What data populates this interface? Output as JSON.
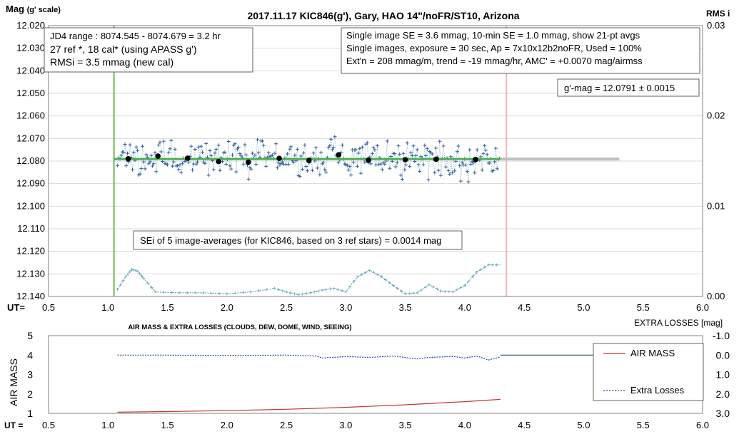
{
  "chart_data": [
    {
      "type": "scatter",
      "title": "2017.11.17  KIC846(g'),  Gary, HAO  14\"/noFR/ST10,  Arizona",
      "ylabel": "Mag",
      "ylabel_unit": "(g' scale)",
      "y2label": "RMS i",
      "xlabel": "UT=",
      "xlim": [
        0.5,
        6.0
      ],
      "ylim": [
        12.02,
        12.14
      ],
      "y_inverted": true,
      "y2lim": [
        0.0,
        0.03
      ],
      "xticks": [
        "0.5",
        "1.0",
        "1.5",
        "2.0",
        "2.5",
        "3.0",
        "3.5",
        "4.0",
        "4.5",
        "5.0",
        "5.5",
        "6.0"
      ],
      "yticks": [
        "12.020",
        "12.030",
        "12.040",
        "12.050",
        "12.060",
        "12.070",
        "12.080",
        "12.090",
        "12.100",
        "12.110",
        "12.120",
        "12.130",
        "12.140"
      ],
      "y2ticks": [
        "0.03",
        "0.02",
        "0.01",
        "0.00"
      ],
      "grid": "horizontal",
      "vlines": [
        {
          "x": 1.05,
          "color": "#70b84a"
        },
        {
          "x": 4.35,
          "color": "#f0b4b4"
        }
      ],
      "info_box_left": [
        "JD4 range : 8074.545 - 8074.679 = 3.2  hr",
        "27 ref *, 18 cal* (using APASS g')",
        "RMSi = 3.5 mmag (new cal)"
      ],
      "info_box_right": [
        "Single image SE = 3.6 mmag, 10-min SE = 1.0 mmag, show  21-pt avgs",
        "Single images, exposure = 30 sec, Ap = 7x10x12b2noFR,  Used = 100%",
        "Ext'n = 208 mmag/m, trend =  -19 mmag/hr, AMC' = +0.0070 mag/airmss"
      ],
      "gmag_box": "g'-mag = 12.0791 ± 0.0015",
      "sei_box": "SEi of 5 image-averages (for KIC846, based on 3 ref stars) = 0.0014  mag",
      "series": [
        {
          "role": "averages",
          "color": "#000000",
          "x": [
            1.17,
            1.42,
            1.67,
            1.93,
            2.18,
            2.44,
            2.69,
            2.94,
            3.19,
            3.5,
            3.76,
            4.09
          ],
          "y": [
            12.079,
            12.0778,
            12.0787,
            12.0802,
            12.0805,
            12.0788,
            12.0797,
            12.0772,
            12.0796,
            12.0794,
            12.0792,
            12.0793
          ]
        },
        {
          "role": "model_line",
          "color": "#4caf50",
          "x": [
            1.05,
            4.3
          ],
          "y": [
            12.0791,
            12.0791
          ]
        },
        {
          "role": "extrapolated_model",
          "color": "#c0c0c0",
          "x": [
            4.3,
            5.3
          ],
          "y": [
            12.0791,
            12.0791
          ]
        },
        {
          "role": "rms_curve",
          "axis": "y2",
          "color": "#5fa8b8",
          "x": [
            1.08,
            1.15,
            1.2,
            1.25,
            1.3,
            1.4,
            1.6,
            1.8,
            2.0,
            2.2,
            2.4,
            2.5,
            2.6,
            2.7,
            2.8,
            2.9,
            3.0,
            3.1,
            3.2,
            3.3,
            3.4,
            3.5,
            3.6,
            3.7,
            3.8,
            3.9,
            4.0,
            4.1,
            4.2,
            4.3
          ],
          "y": [
            0.0008,
            0.0022,
            0.003,
            0.0028,
            0.002,
            0.0005,
            0.0004,
            0.0004,
            0.0003,
            0.0005,
            0.0009,
            0.0005,
            0.0002,
            0.0004,
            0.0007,
            0.0009,
            0.0005,
            0.0022,
            0.0029,
            0.0022,
            0.0012,
            0.0003,
            0.0004,
            0.0013,
            0.0006,
            0.0005,
            0.0012,
            0.0027,
            0.0035,
            0.0035
          ]
        }
      ]
    },
    {
      "type": "line",
      "title": "AIR MASS & EXTRA LOSSES (CLOUDS, DEW, DOME, WIND, SEEING)",
      "ylabel": "AIR MASS",
      "y2label": "EXTRA LOSSES [mag]",
      "xlabel": "UT =",
      "xlim": [
        0.5,
        6.0
      ],
      "ylim": [
        1,
        5
      ],
      "y2lim": [
        -1.0,
        3.0
      ],
      "y2_inverted": true,
      "xticks": [
        "0.5",
        "1.0",
        "1.5",
        "2.0",
        "2.5",
        "3.0",
        "3.5",
        "4.0",
        "4.5",
        "5.0",
        "5.5",
        "6.0"
      ],
      "yticks": [
        "1",
        "2",
        "3",
        "4",
        "5"
      ],
      "y2ticks": [
        "-1.0",
        "0.0",
        "1.0",
        "2.0",
        "3.0"
      ],
      "legend": "right",
      "series": [
        {
          "name": "AIR MASS",
          "color": "#c0392b",
          "x": [
            1.08,
            1.5,
            2.0,
            2.5,
            3.0,
            3.5,
            4.0,
            4.3
          ],
          "y": [
            1.06,
            1.09,
            1.14,
            1.21,
            1.31,
            1.44,
            1.6,
            1.72
          ]
        },
        {
          "name": "Extra Losses",
          "color": "#1f3fbf",
          "axis": "y2",
          "x": [
            1.08,
            1.5,
            2.0,
            2.5,
            2.75,
            2.8,
            3.0,
            3.2,
            3.4,
            3.6,
            3.7,
            3.9,
            4.0,
            4.1,
            4.2,
            4.3
          ],
          "y": [
            0.0,
            0.0,
            0.02,
            0.0,
            0.05,
            0.15,
            0.08,
            0.12,
            0.05,
            0.2,
            0.12,
            0.07,
            0.15,
            0.05,
            0.25,
            0.1
          ]
        },
        {
          "role": "extrapolated_losses",
          "color": "#1a5a5a",
          "axis": "y2",
          "x": [
            4.3,
            5.3
          ],
          "y": [
            0.0,
            0.0
          ]
        }
      ]
    }
  ]
}
